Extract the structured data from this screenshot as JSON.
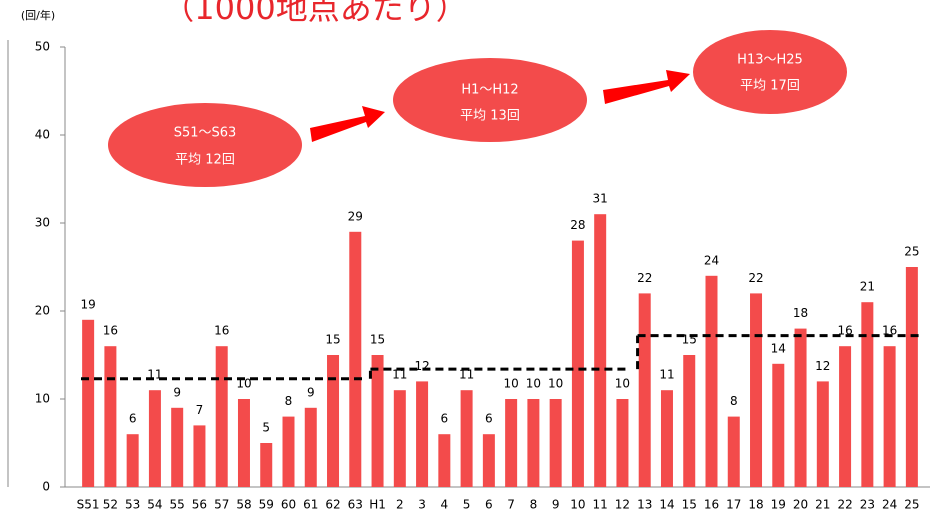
{
  "chart_data": {
    "type": "bar",
    "title": "（1000地点あたり）",
    "y_label": "(回/年)",
    "categories": [
      "S51",
      "52",
      "53",
      "54",
      "55",
      "56",
      "57",
      "58",
      "59",
      "60",
      "61",
      "62",
      "63",
      "H1",
      "2",
      "3",
      "4",
      "5",
      "6",
      "7",
      "8",
      "9",
      "10",
      "11",
      "12",
      "13",
      "14",
      "15",
      "16",
      "17",
      "18",
      "19",
      "20",
      "21",
      "22",
      "23",
      "24",
      "25"
    ],
    "values": [
      19,
      16,
      6,
      11,
      9,
      7,
      16,
      10,
      5,
      8,
      9,
      15,
      29,
      15,
      11,
      12,
      6,
      11,
      6,
      10,
      10,
      10,
      28,
      31,
      10,
      22,
      11,
      15,
      24,
      8,
      22,
      14,
      18,
      12,
      16,
      21,
      16,
      25
    ],
    "color": "#f34b4b",
    "ylim": [
      0,
      50
    ],
    "yticks": [
      0,
      10,
      20,
      30,
      40,
      50
    ],
    "averages": [
      {
        "from": "S51",
        "to": "63",
        "value": 12.3
      },
      {
        "from": "H1",
        "to": "12",
        "value": 13.4
      },
      {
        "from": "13",
        "to": "25",
        "value": 17.2
      }
    ],
    "annotations": [
      {
        "lines": [
          "S51～S63",
          "平均 12回"
        ]
      },
      {
        "lines": [
          "H1～H12",
          "平均 13回"
        ]
      },
      {
        "lines": [
          "H13～H25",
          "平均 17回"
        ]
      }
    ]
  }
}
